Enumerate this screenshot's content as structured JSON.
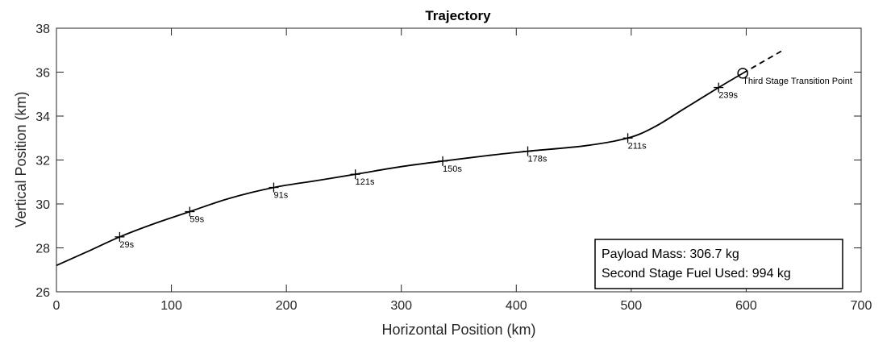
{
  "chart_data": {
    "type": "line",
    "title": "Trajectory",
    "xlabel": "Horizontal Position (km)",
    "ylabel": "Vertical Position (km)",
    "xlim": [
      0,
      700
    ],
    "ylim": [
      26,
      38
    ],
    "xticks": [
      0,
      100,
      200,
      300,
      400,
      500,
      600,
      700
    ],
    "yticks": [
      26,
      28,
      30,
      32,
      34,
      36,
      38
    ],
    "grid": false,
    "series": [
      {
        "style": "solid",
        "color": "#000000",
        "x": [
          0,
          30,
          55,
          85,
          116,
          150,
          189,
          225,
          260,
          300,
          336,
          375,
          410,
          460,
          497,
          520,
          545,
          576,
          597
        ],
        "y": [
          27.2,
          27.9,
          28.5,
          29.1,
          29.65,
          30.25,
          30.75,
          31.05,
          31.35,
          31.7,
          31.95,
          32.2,
          32.4,
          32.65,
          33.0,
          33.5,
          34.3,
          35.3,
          35.95
        ]
      },
      {
        "style": "dashed",
        "color": "#000000",
        "x": [
          597,
          632
        ],
        "y": [
          35.95,
          37.0
        ]
      }
    ],
    "time_markers": [
      {
        "x": 55,
        "y": 28.5,
        "label": "29s"
      },
      {
        "x": 116,
        "y": 29.65,
        "label": "59s"
      },
      {
        "x": 189,
        "y": 30.75,
        "label": "91s"
      },
      {
        "x": 260,
        "y": 31.35,
        "label": "121s"
      },
      {
        "x": 336,
        "y": 31.95,
        "label": "150s"
      },
      {
        "x": 410,
        "y": 32.4,
        "label": "178s"
      },
      {
        "x": 497,
        "y": 33.0,
        "label": "211s"
      },
      {
        "x": 576,
        "y": 35.3,
        "label": "239s"
      }
    ],
    "transition_point": {
      "x": 597,
      "y": 35.95,
      "label": "Third Stage Transition Point"
    },
    "info_box": {
      "line1": "Payload Mass: 306.7 kg",
      "line2": "Second Stage Fuel Used: 994 kg"
    }
  }
}
